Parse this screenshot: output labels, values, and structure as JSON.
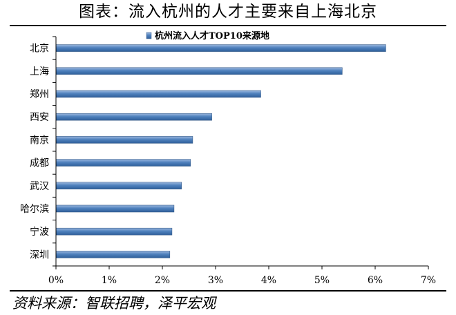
{
  "figure": {
    "title": "图表：流入杭州的人才主要来自上海北京",
    "source": "资料来源：智联招聘，泽平宏观"
  },
  "chart_data": {
    "type": "bar",
    "orientation": "horizontal",
    "title": "",
    "xlabel": "",
    "ylabel": "",
    "categories": [
      "北京",
      "上海",
      "郑州",
      "西安",
      "南京",
      "成都",
      "武汉",
      "哈尔滨",
      "宁波",
      "深圳"
    ],
    "series": [
      {
        "name": "杭州流入人才TOP10来源地",
        "values": [
          6.2,
          5.38,
          3.85,
          2.93,
          2.57,
          2.53,
          2.36,
          2.22,
          2.18,
          2.14
        ],
        "color": "#4f81bd"
      }
    ],
    "xlim": [
      0,
      7
    ],
    "xticks": [
      0,
      1,
      2,
      3,
      4,
      5,
      6,
      7
    ],
    "tick_suffix": "%",
    "grid": false,
    "legend_position": "top"
  }
}
